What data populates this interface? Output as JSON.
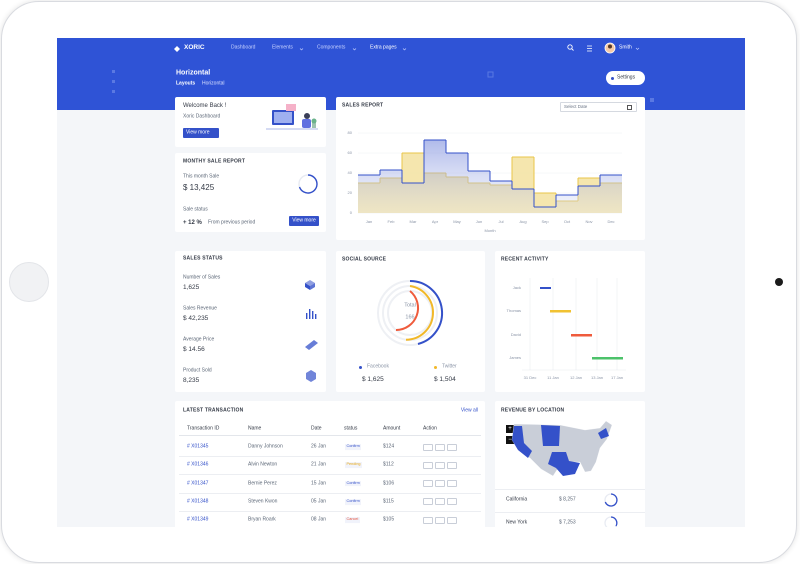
{
  "nav": {
    "brand": "XORIC",
    "items": [
      "Dashboard",
      "Elements",
      "Components",
      "Extra pages"
    ],
    "user": "Smith"
  },
  "page_header": {
    "title": "Horizontal",
    "breadcrumb": [
      "Layouts",
      "Horizontal"
    ],
    "settings_button": "Settings"
  },
  "welcome_card": {
    "title": "Welcome Back !",
    "subtitle": "Xoric Dashboard",
    "button": "View more"
  },
  "monthly_sale_report": {
    "title": "MONTHY SALE REPORT",
    "month_label": "This month Sale",
    "month_value": "$ 13,425",
    "status_label": "Sale status",
    "change": "+ 12 %",
    "change_note": "From previous period",
    "button": "View more"
  },
  "sales_report": {
    "title": "SALES REPORT",
    "date_input": "Select Date",
    "chart_data": {
      "type": "step",
      "categories": [
        "Jan",
        "Feb",
        "Mar",
        "Apr",
        "May",
        "Jun",
        "Jul",
        "Aug",
        "Sep",
        "Oct",
        "Nov",
        "Dec"
      ],
      "series": [
        {
          "color": "#e9c649",
          "values": [
            30,
            35,
            60,
            40,
            36,
            30,
            28,
            56,
            20,
            12,
            35,
            30
          ]
        },
        {
          "color": "#3451c9",
          "values": [
            38,
            43,
            30,
            73,
            60,
            42,
            32,
            24,
            6,
            18,
            27,
            38
          ]
        }
      ],
      "xlabel": "Month",
      "ylim": [
        0,
        80
      ],
      "yticks": [
        0,
        20,
        40,
        60,
        80
      ],
      "grid": true
    }
  },
  "sales_status": {
    "title": "SALES STATUS",
    "items": [
      {
        "label": "Number of Sales",
        "value": "1,625"
      },
      {
        "label": "Sales Revenue",
        "value": "$ 42,235"
      },
      {
        "label": "Average Price",
        "value": "$ 14.56"
      },
      {
        "label": "Product Sold",
        "value": "8,235"
      }
    ]
  },
  "social_source": {
    "title": "SOCIAL SOURCE",
    "center_label": "Total",
    "center_value": "166",
    "legend": [
      {
        "name": "Facebook",
        "value": "$ 1,625",
        "color": "#3451c9"
      },
      {
        "name": "Twitter",
        "value": "$ 1,504",
        "color": "#f1b829"
      }
    ]
  },
  "recent_activity": {
    "title": "RECENT ACTIVITY",
    "people": [
      "Jack",
      "Thomas",
      "David",
      "James"
    ],
    "dates": [
      "31 Dec",
      "11 Jan",
      "12 Jan",
      "13 Jan",
      "17 Jan"
    ]
  },
  "latest_transaction": {
    "title": "LATEST TRANSACTION",
    "link": "View all",
    "columns": [
      "Transaction ID",
      "Name",
      "Date",
      "status",
      "Amount",
      "Action"
    ],
    "rows": [
      {
        "id": "# X01345",
        "name": "Danny Johnson",
        "date": "26 Jan",
        "status": "Confirm",
        "status_color": "#3451c9",
        "amount": "$124"
      },
      {
        "id": "# X01346",
        "name": "Alvin Newton",
        "date": "21 Jan",
        "status": "Pending",
        "status_color": "#e6a817",
        "amount": "$112"
      },
      {
        "id": "# X01347",
        "name": "Bernie Perez",
        "date": "15 Jan",
        "status": "Confirm",
        "status_color": "#3451c9",
        "amount": "$106"
      },
      {
        "id": "# X01348",
        "name": "Steven Kwon",
        "date": "05 Jan",
        "status": "Confirm",
        "status_color": "#3451c9",
        "amount": "$115"
      },
      {
        "id": "# X01349",
        "name": "Bryan Roark",
        "date": "08 Jan",
        "status": "Cancel",
        "status_color": "#e5533d",
        "amount": "$105"
      }
    ]
  },
  "revenue_by_location": {
    "title": "REVENUE BY LOCATION",
    "zoom": [
      "+",
      "−"
    ],
    "rows": [
      {
        "state": "California",
        "value": "$ 8,257"
      },
      {
        "state": "New York",
        "value": "$ 7,253"
      }
    ]
  }
}
